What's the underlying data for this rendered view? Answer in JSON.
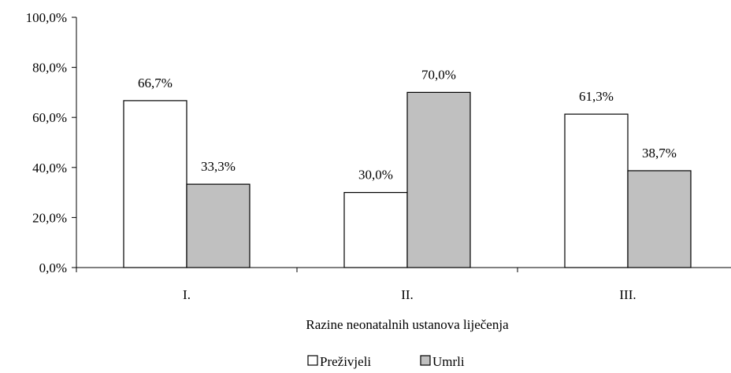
{
  "chart_data": {
    "type": "bar",
    "categories": [
      "I.",
      "II.",
      "III."
    ],
    "series": [
      {
        "name": "Preživjeli",
        "values": [
          66.7,
          30.0,
          61.3
        ],
        "color": "#ffffff"
      },
      {
        "name": "Umrli",
        "values": [
          33.3,
          70.0,
          38.7
        ],
        "color": "#c0c0c0"
      }
    ],
    "data_labels": [
      [
        "66,7%",
        "30,0%",
        "61,3%"
      ],
      [
        "33,3%",
        "70,0%",
        "38,7%"
      ]
    ],
    "y_ticks": [
      {
        "value": 0,
        "label": "0,0%"
      },
      {
        "value": 20,
        "label": "20,0%"
      },
      {
        "value": 40,
        "label": "40,0%"
      },
      {
        "value": 60,
        "label": "60,0%"
      },
      {
        "value": 80,
        "label": "80,0%"
      },
      {
        "value": 100,
        "label": "100,0%"
      }
    ],
    "ylim": [
      0,
      100
    ],
    "title": "",
    "xlabel": "Razine neonatalnih ustanova liječenja",
    "ylabel": "",
    "grid": false,
    "legend_position": "bottom",
    "border_color": "#000000"
  }
}
